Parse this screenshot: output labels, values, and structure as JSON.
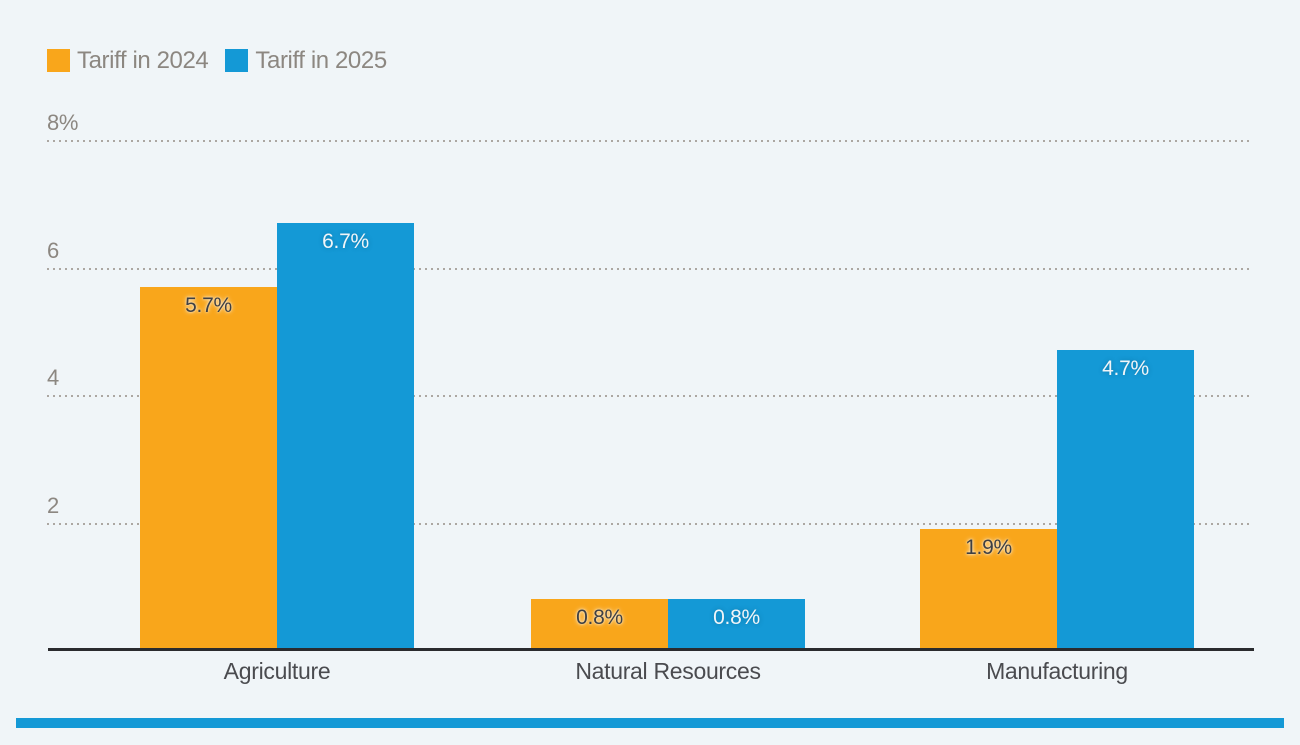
{
  "legend": {
    "items": [
      {
        "label": "Tariff in 2024",
        "color": "#F9A61B"
      },
      {
        "label": "Tariff in 2025",
        "color": "#1499D6"
      }
    ]
  },
  "chart_data": {
    "type": "bar",
    "categories": [
      "Agriculture",
      "Natural Resources",
      "Manufacturing"
    ],
    "series": [
      {
        "name": "Tariff in 2024",
        "color": "#F9A61B",
        "values": [
          5.7,
          0.8,
          1.9
        ],
        "data_labels": [
          "5.7%",
          "0.8%",
          "1.9%"
        ]
      },
      {
        "name": "Tariff in 2025",
        "color": "#1499D6",
        "values": [
          6.7,
          0.8,
          4.7
        ],
        "data_labels": [
          "6.7%",
          "0.8%",
          "4.7%"
        ]
      }
    ],
    "title": "",
    "xlabel": "",
    "ylabel": "",
    "ylim": [
      0,
      8
    ],
    "yticks": [
      {
        "value": 2,
        "label": "2"
      },
      {
        "value": 4,
        "label": "4"
      },
      {
        "value": 6,
        "label": "6"
      },
      {
        "value": 8,
        "label": "8%"
      }
    ],
    "grid": "horizontal-dotted",
    "legend_position": "top-left"
  },
  "footer": {
    "accent_strip_color": "#1499D6"
  },
  "colors": {
    "background": "#F0F5F8",
    "axis_line": "#2A2B2E",
    "gridline_dots": "#ACA7A2",
    "tick_label": "#8C8781",
    "category_label": "#4A4B4F",
    "value_label_on_orange": "#3F4043",
    "value_label_on_blue": "#F1F5F8"
  }
}
